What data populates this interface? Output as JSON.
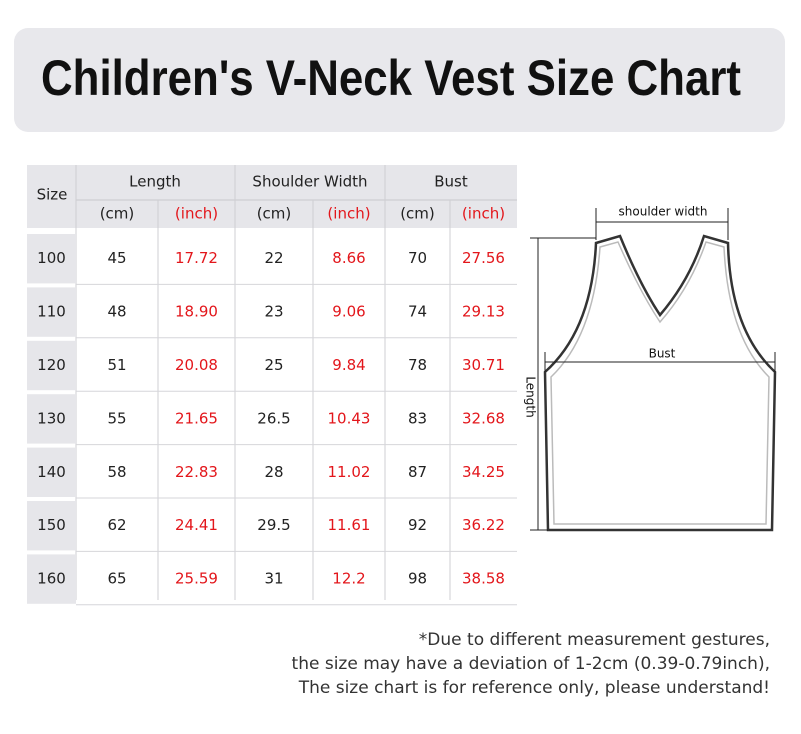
{
  "title": "Children's V-Neck Vest Size Chart",
  "table": {
    "size_header": "Size",
    "groups": [
      "Length",
      "Shoulder Width",
      "Bust"
    ],
    "units": [
      "(cm)",
      "(inch)",
      "(cm)",
      "(inch)",
      "(cm)",
      "(inch)"
    ],
    "rows": [
      [
        "100",
        "45",
        "17.72",
        "22",
        "8.66",
        "70",
        "27.56"
      ],
      [
        "110",
        "48",
        "18.90",
        "23",
        "9.06",
        "74",
        "29.13"
      ],
      [
        "120",
        "51",
        "20.08",
        "25",
        "9.84",
        "78",
        "30.71"
      ],
      [
        "130",
        "55",
        "21.65",
        "26.5",
        "10.43",
        "83",
        "32.68"
      ],
      [
        "140",
        "58",
        "22.83",
        "28",
        "11.02",
        "87",
        "34.25"
      ],
      [
        "150",
        "62",
        "24.41",
        "29.5",
        "11.61",
        "92",
        "36.22"
      ],
      [
        "160",
        "65",
        "25.59",
        "31",
        "12.2",
        "98",
        "38.58"
      ]
    ]
  },
  "diagram": {
    "shoulder": "shoulder width",
    "bust": "Bust",
    "length": "Length"
  },
  "notes": [
    "*Due to different measurement gestures,",
    "the size may have a deviation of 1-2cm (0.39-0.79inch),",
    "The size chart is for reference only, please understand!"
  ]
}
